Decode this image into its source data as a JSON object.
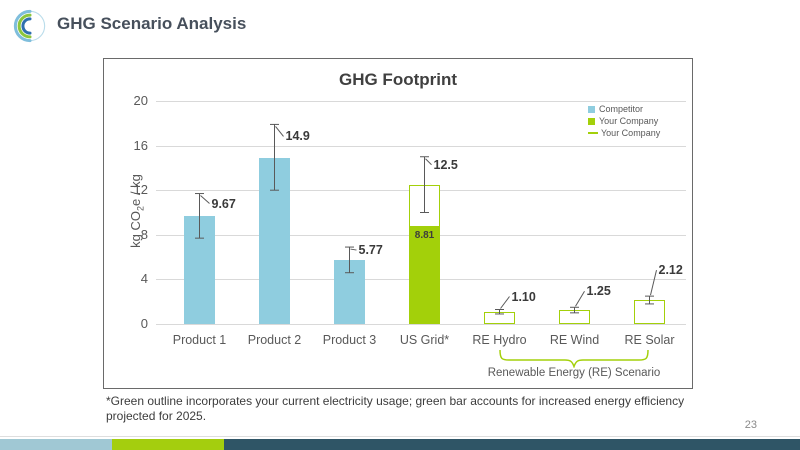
{
  "header": {
    "title": "GHG Scenario Analysis"
  },
  "page_number": "23",
  "footnote": "*Green outline incorporates your current electricity usage; green bar accounts for increased energy efficiency projected for 2025.",
  "colors": {
    "competitor_blue": "#8FCDDF",
    "company_green": "#A3D00A",
    "axis_text": "#595959",
    "gridline": "#D9D9D9",
    "error_bar": "#595959",
    "footer_blue": "#A0C8D4",
    "footer_green": "#A4CE0E",
    "footer_dark": "#2F5566",
    "logo_blue_light": "#7FBEDC",
    "logo_green": "#8CC63E",
    "logo_blue_dark": "#2F6FAE"
  },
  "chart_data": {
    "type": "bar",
    "title": "GHG Footprint",
    "ylabel": "kg CO2e / kg",
    "ylabel_parts": {
      "pre": "kg CO",
      "sub": "2",
      "post": "e / kg"
    },
    "xlabel": "",
    "ylim": [
      0,
      20
    ],
    "yticks": [
      0,
      4,
      8,
      12,
      16,
      20
    ],
    "grid": true,
    "legend_position": "top-right",
    "legend": [
      {
        "label": "Competitor",
        "marker": "square",
        "color": "#8FCDDF"
      },
      {
        "label": "Your Company",
        "marker": "square",
        "color": "#A3D00A"
      },
      {
        "label": "Your Company",
        "marker": "line",
        "color": "#A3D00A"
      }
    ],
    "categories": [
      "Product 1",
      "Product 2",
      "Product 3",
      "US Grid*",
      "RE Hydro",
      "RE Wind",
      "RE Solar"
    ],
    "bars": [
      {
        "category": "Product 1",
        "value": 9.67,
        "label": "9.67",
        "series": "Competitor",
        "style": "solid",
        "err_low": 7.7,
        "err_high": 11.7
      },
      {
        "category": "Product 2",
        "value": 14.9,
        "label": "14.9",
        "series": "Competitor",
        "style": "solid",
        "err_low": 12.0,
        "err_high": 17.9
      },
      {
        "category": "Product 3",
        "value": 5.77,
        "label": "5.77",
        "series": "Competitor",
        "style": "solid",
        "err_low": 4.6,
        "err_high": 6.9
      },
      {
        "category": "US Grid*",
        "value": 12.5,
        "label": "12.5",
        "series": "Your Company",
        "style": "outline-with-fill",
        "fill_value": 8.81,
        "fill_label": "8.81",
        "err_low": 10.0,
        "err_high": 15.0
      },
      {
        "category": "RE Hydro",
        "value": 1.1,
        "label": "1.10",
        "series": "Your Company",
        "style": "outline",
        "err_low": 0.9,
        "err_high": 1.3
      },
      {
        "category": "RE Wind",
        "value": 1.25,
        "label": "1.25",
        "series": "Your Company",
        "style": "outline",
        "err_low": 1.0,
        "err_high": 1.5
      },
      {
        "category": "RE Solar",
        "value": 2.12,
        "label": "2.12",
        "series": "Your Company",
        "style": "outline",
        "err_low": 1.8,
        "err_high": 2.5
      }
    ],
    "annotation": {
      "label": "Renewable Energy (RE) Scenario",
      "applies_to": [
        "RE Hydro",
        "RE Wind",
        "RE Solar"
      ]
    }
  }
}
